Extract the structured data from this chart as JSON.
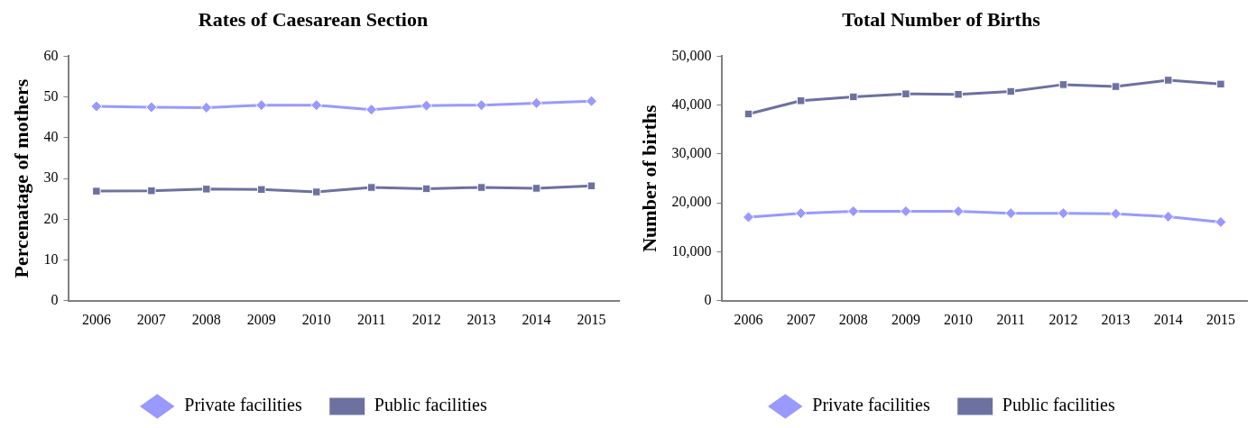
{
  "chart_data": [
    {
      "type": "line",
      "title": "Rates of Caesarean Section",
      "ylabel": "Percenatage of mothers",
      "categories": [
        "2006",
        "2007",
        "2008",
        "2009",
        "2010",
        "2011",
        "2012",
        "2013",
        "2014",
        "2015"
      ],
      "series": [
        {
          "name": "Private facilities",
          "color": "#9999ff",
          "marker": "diamond",
          "values": [
            47.7,
            47.5,
            47.4,
            48.0,
            48.0,
            46.9,
            47.9,
            48.0,
            48.5,
            49.0
          ]
        },
        {
          "name": "Public facilities",
          "color": "#6c71a0",
          "marker": "square",
          "values": [
            26.9,
            27.0,
            27.4,
            27.3,
            26.7,
            27.8,
            27.5,
            27.8,
            27.6,
            28.2
          ]
        }
      ],
      "ylim": [
        0,
        60
      ],
      "yticks": [
        0,
        10,
        20,
        30,
        40,
        50,
        60
      ],
      "grid": false,
      "legend": "bottom"
    },
    {
      "type": "line",
      "title": "Total Number of Births",
      "ylabel": "Number of births",
      "categories": [
        "2006",
        "2007",
        "2008",
        "2009",
        "2010",
        "2011",
        "2012",
        "2013",
        "2014",
        "2015"
      ],
      "series": [
        {
          "name": "Private facilities",
          "color": "#9999ff",
          "marker": "diamond",
          "values": [
            17100,
            17900,
            18300,
            18300,
            18300,
            17900,
            17900,
            17800,
            17200,
            16100
          ]
        },
        {
          "name": "Public facilities",
          "color": "#6c71a0",
          "marker": "square",
          "values": [
            38200,
            40900,
            41700,
            42300,
            42200,
            42800,
            44200,
            43800,
            45100,
            44300
          ]
        }
      ],
      "ylim": [
        0,
        50000
      ],
      "yticks": [
        {
          "value": 0,
          "label": "0"
        },
        {
          "value": 10000,
          "label": "10,000"
        },
        {
          "value": 20000,
          "label": "20,000"
        },
        {
          "value": 30000,
          "label": "30,000"
        },
        {
          "value": 40000,
          "label": "40,000"
        },
        {
          "value": 50000,
          "label": "50,000"
        }
      ],
      "grid": false,
      "legend": "bottom"
    }
  ]
}
